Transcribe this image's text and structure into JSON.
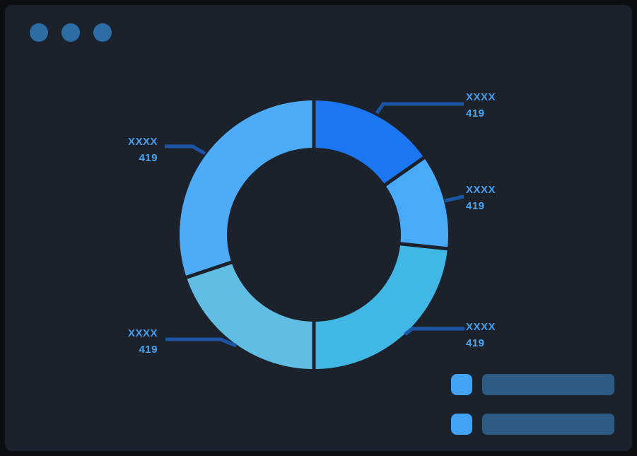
{
  "window": {
    "dot_color": "#2e6ca6",
    "dots": [
      {
        "name": "window-dot-1"
      },
      {
        "name": "window-dot-2"
      },
      {
        "name": "window-dot-3"
      }
    ]
  },
  "colors": {
    "frame_bg": "#0b0e13",
    "panel_bg": "#1b222c",
    "callout_line": "#1d55a6",
    "label_text": "#459ced",
    "value_text": "#4aa5f0"
  },
  "chart_data": {
    "type": "donut",
    "title": "",
    "legend_position": "bottom-right",
    "segments": [
      {
        "label": "XXXX",
        "value": "419",
        "color": "#1b76f2",
        "start_angle": 0,
        "end_angle": 55,
        "label_position": "top-right"
      },
      {
        "label": "XXXX",
        "value": "419",
        "color": "#49aaf8",
        "start_angle": 55,
        "end_angle": 96,
        "label_position": "right"
      },
      {
        "label": "XXXX",
        "value": "419",
        "color": "#41b7e6",
        "start_angle": 96,
        "end_angle": 180,
        "label_position": "bottom-right"
      },
      {
        "label": "XXXX",
        "value": "419",
        "color": "#60bee5",
        "start_angle": 180,
        "end_angle": 251.5,
        "label_position": "bottom-left"
      },
      {
        "label": "XXXX",
        "value": "419",
        "color": "#4dabf7",
        "start_angle": 251.5,
        "end_angle": 360,
        "label_position": "top-left"
      }
    ],
    "legend": {
      "swatch_color": "#42a4f7",
      "bar_color": "#2e5b81",
      "items": [
        {
          "text": ""
        },
        {
          "text": ""
        }
      ]
    }
  }
}
